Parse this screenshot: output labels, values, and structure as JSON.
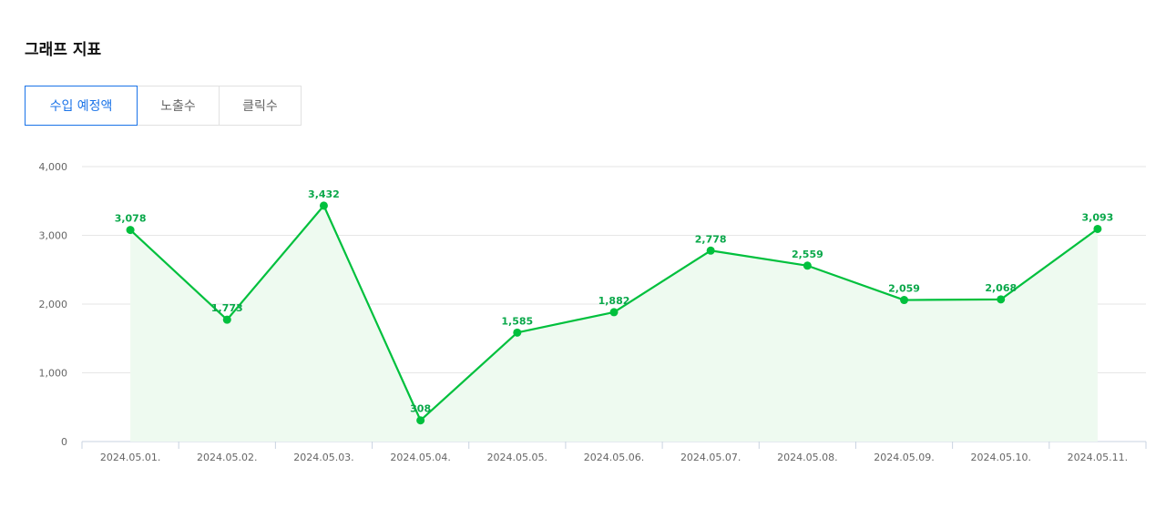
{
  "header": {
    "title": "그래프 지표"
  },
  "tabs": [
    {
      "label": "수입 예정액",
      "active": true
    },
    {
      "label": "노출수",
      "active": false
    },
    {
      "label": "클릭수",
      "active": false
    }
  ],
  "colors": {
    "accent": "#1a73e8",
    "line": "#00c03d",
    "area": "#eefaf0",
    "label": "#0aa84a"
  },
  "chart_data": {
    "type": "area",
    "categories": [
      "2024.05.01.",
      "2024.05.02.",
      "2024.05.03.",
      "2024.05.04.",
      "2024.05.05.",
      "2024.05.06.",
      "2024.05.07.",
      "2024.05.08.",
      "2024.05.09.",
      "2024.05.10.",
      "2024.05.11."
    ],
    "values": [
      3078,
      1773,
      3432,
      308,
      1585,
      1882,
      2778,
      2559,
      2059,
      2068,
      3093
    ],
    "value_labels": [
      "3,078",
      "1,773",
      "3,432",
      "308",
      "1,585",
      "1,882",
      "2,778",
      "2,559",
      "2,059",
      "2,068",
      "3,093"
    ],
    "yticks": [
      0,
      1000,
      2000,
      3000,
      4000
    ],
    "ytick_labels": [
      "0",
      "1,000",
      "2,000",
      "3,000",
      "4,000"
    ],
    "ylim": [
      0,
      4000
    ],
    "grid": true
  }
}
